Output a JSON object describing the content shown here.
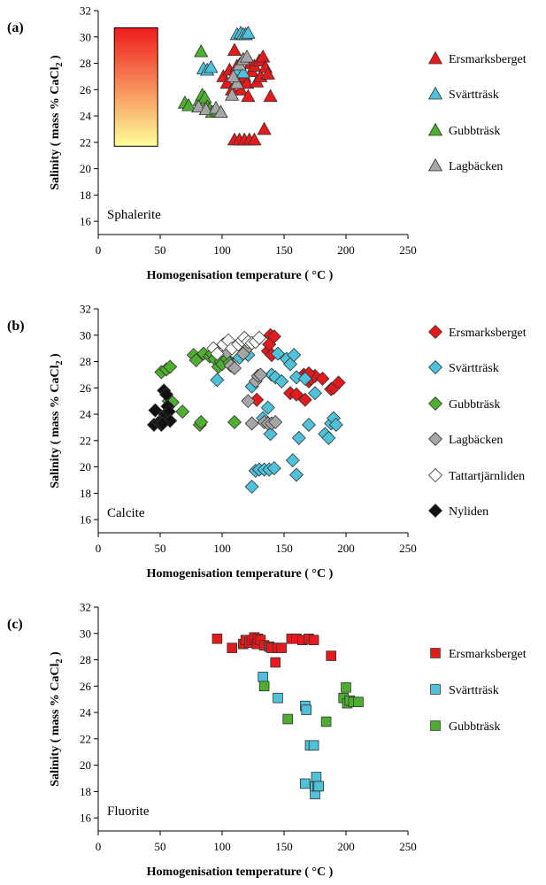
{
  "chart_data": [
    {
      "type": "scatter",
      "panel_label": "(a)",
      "mineral": "Sphalerite",
      "xlabel": "Homogenisation temperature ( °C )",
      "ylabel_main": "Salinity ( mass % CaCl",
      "ylabel_sub": "2",
      "ylabel_end": " )",
      "xlim": [
        0,
        250
      ],
      "ylim": [
        15,
        32
      ],
      "xticks": [
        "0",
        "50",
        "100",
        "150",
        "200",
        "250"
      ],
      "yticks": [
        "16",
        "18",
        "20",
        "22",
        "24",
        "26",
        "28",
        "30",
        "32"
      ],
      "marker": "triangle",
      "gradient_box": {
        "x": [
          13,
          48
        ],
        "y": [
          21.7,
          30.7
        ],
        "color_top": "#ee1c1c",
        "color_bottom": "#ffff99"
      },
      "series": [
        {
          "name": "Ersmarksberget",
          "color": "#e41a1c",
          "points": [
            [
              101,
              27
            ],
            [
              104,
              26.5
            ],
            [
              106,
              27.5
            ],
            [
              108,
              26
            ],
            [
              110,
              29
            ],
            [
              112,
              27.8
            ],
            [
              113,
              26.7
            ],
            [
              115,
              26
            ],
            [
              117,
              28.3
            ],
            [
              118,
              27
            ],
            [
              120,
              26.5
            ],
            [
              121,
              25.5
            ],
            [
              123,
              28
            ],
            [
              124,
              27.4
            ],
            [
              126,
              27.8
            ],
            [
              128,
              26.6
            ],
            [
              130,
              28.2
            ],
            [
              131,
              27
            ],
            [
              133,
              28.5
            ],
            [
              135,
              27.7
            ],
            [
              137,
              27.2
            ],
            [
              139,
              25.5
            ],
            [
              110,
              22.2
            ],
            [
              114,
              22.2
            ],
            [
              118,
              22.2
            ],
            [
              122,
              22.2
            ],
            [
              126,
              22.2
            ],
            [
              134,
              23
            ]
          ]
        },
        {
          "name": "Svärtträsk",
          "color": "#4fc1d9",
          "points": [
            [
              85,
              27.6
            ],
            [
              88,
              27.5
            ],
            [
              91,
              27.7
            ],
            [
              112,
              30.2
            ],
            [
              115,
              30.3
            ],
            [
              117,
              30.2
            ],
            [
              119,
              30.2
            ],
            [
              121,
              30.3
            ],
            [
              113,
              27.5
            ],
            [
              117,
              27.3
            ]
          ]
        },
        {
          "name": "Gubbträsk",
          "color": "#4fae32",
          "points": [
            [
              70,
              25
            ],
            [
              73,
              24.8
            ],
            [
              82,
              25.2
            ],
            [
              84,
              25.6
            ],
            [
              86,
              25.4
            ],
            [
              88,
              24.7
            ],
            [
              90,
              24.5
            ],
            [
              92,
              24.3
            ],
            [
              96,
              24.4
            ],
            [
              83,
              28.9
            ]
          ]
        },
        {
          "name": "Lagbäcken",
          "color": "#a6a6a6",
          "points": [
            [
              81,
              24.7
            ],
            [
              87,
              24.5
            ],
            [
              95,
              24.6
            ],
            [
              99,
              24.3
            ],
            [
              108,
              25.6
            ],
            [
              112,
              26.5
            ],
            [
              114,
              27.9
            ],
            [
              117,
              28.3
            ],
            [
              120,
              28.5
            ],
            [
              109,
              27
            ]
          ]
        }
      ]
    },
    {
      "type": "scatter",
      "panel_label": "(b)",
      "mineral": "Calcite",
      "xlabel": "Homogenisation temperature ( °C )",
      "ylabel_main": "Salinity ( mass % CaCl",
      "ylabel_sub": "2",
      "ylabel_end": " )",
      "xlim": [
        0,
        250
      ],
      "ylim": [
        15,
        32
      ],
      "xticks": [
        "0",
        "50",
        "100",
        "150",
        "200",
        "250"
      ],
      "yticks": [
        "16",
        "18",
        "20",
        "22",
        "24",
        "26",
        "28",
        "30",
        "32"
      ],
      "marker": "diamond",
      "series": [
        {
          "name": "Ersmarksberget",
          "color": "#e41a1c",
          "points": [
            [
              128,
              25.1
            ],
            [
              137,
              28.8
            ],
            [
              139,
              30
            ],
            [
              140,
              28.5
            ],
            [
              142,
              29.9
            ],
            [
              138,
              29.3
            ],
            [
              155,
              25.6
            ],
            [
              160,
              25.5
            ],
            [
              166,
              27
            ],
            [
              167,
              25.1
            ],
            [
              170,
              26.5
            ],
            [
              172,
              26.7
            ],
            [
              175,
              26.9
            ],
            [
              181,
              26.7
            ],
            [
              188,
              25.9
            ],
            [
              190,
              26
            ],
            [
              194,
              26.4
            ],
            [
              170,
              27.1
            ]
          ]
        },
        {
          "name": "Svärtträsk",
          "color": "#4fc1d9",
          "points": [
            [
              96,
              26.6
            ],
            [
              114,
              28.3
            ],
            [
              121,
              28.5
            ],
            [
              124,
              26.1
            ],
            [
              130,
              26.9
            ],
            [
              133,
              23.7
            ],
            [
              137,
              24.5
            ],
            [
              139,
              22.5
            ],
            [
              140,
              27
            ],
            [
              143,
              26.8
            ],
            [
              145,
              28.6
            ],
            [
              148,
              26.5
            ],
            [
              152,
              28.2
            ],
            [
              155,
              27.8
            ],
            [
              158,
              28.5
            ],
            [
              160,
              26.8
            ],
            [
              124,
              18.5
            ],
            [
              127,
              19.7
            ],
            [
              130,
              19.8
            ],
            [
              134,
              19.8
            ],
            [
              138,
              19.8
            ],
            [
              142,
              19.9
            ],
            [
              157,
              20.5
            ],
            [
              160,
              19.4
            ],
            [
              162,
              22.2
            ],
            [
              167,
              26.7
            ],
            [
              170,
              23.2
            ],
            [
              175,
              25.6
            ],
            [
              183,
              22.5
            ],
            [
              186,
              22.2
            ],
            [
              188,
              23.3
            ],
            [
              190,
              23.7
            ],
            [
              192,
              23.2
            ]
          ]
        },
        {
          "name": "Gubbträsk",
          "color": "#4fae32",
          "points": [
            [
              51,
              27.2
            ],
            [
              55,
              27.4
            ],
            [
              58,
              27.6
            ],
            [
              57,
              25
            ],
            [
              60,
              24.9
            ],
            [
              68,
              24.2
            ],
            [
              77,
              28.5
            ],
            [
              79,
              28.1
            ],
            [
              82,
              23.2
            ],
            [
              83,
              23.4
            ],
            [
              85,
              28.6
            ],
            [
              90,
              28.4
            ],
            [
              92,
              28.6
            ],
            [
              94,
              28.2
            ],
            [
              97,
              27.6
            ],
            [
              99,
              28
            ],
            [
              100,
              27.8
            ],
            [
              104,
              28.2
            ],
            [
              106,
              27.9
            ],
            [
              110,
              23.4
            ]
          ]
        },
        {
          "name": "Lagbäcken",
          "color": "#a6a6a6",
          "points": [
            [
              104,
              28.7
            ],
            [
              107,
              27.7
            ],
            [
              110,
              27.5
            ],
            [
              119,
              28.9
            ],
            [
              121,
              25
            ],
            [
              124,
              23.3
            ],
            [
              127,
              26.5
            ],
            [
              129,
              26.9
            ],
            [
              131,
              27
            ],
            [
              134,
              23.4
            ],
            [
              137,
              23.3
            ],
            [
              140,
              23.3
            ],
            [
              143,
              23.4
            ],
            [
              117,
              28.6
            ]
          ]
        },
        {
          "name": "Tattartjärnliden",
          "color": "#ffffff",
          "points": [
            [
              93,
              29
            ],
            [
              96,
              28.6
            ],
            [
              101,
              29.3
            ],
            [
              105,
              29.6
            ],
            [
              108,
              29
            ],
            [
              113,
              29.3
            ],
            [
              116,
              29.6
            ],
            [
              118,
              29.8
            ],
            [
              121,
              29.5
            ],
            [
              124,
              29.4
            ],
            [
              127,
              29.5
            ],
            [
              130,
              29.8
            ]
          ]
        },
        {
          "name": "Nyliden",
          "color": "#111111",
          "points": [
            [
              45,
              23.2
            ],
            [
              46,
              24.3
            ],
            [
              49,
              23.4
            ],
            [
              51,
              23.2
            ],
            [
              52,
              23.5
            ],
            [
              53,
              25.8
            ],
            [
              54,
              24
            ],
            [
              55,
              25.5
            ],
            [
              56,
              24.6
            ],
            [
              57,
              24.2
            ],
            [
              58,
              23.5
            ],
            [
              52,
              23.3
            ]
          ]
        }
      ]
    },
    {
      "type": "scatter",
      "panel_label": "(c)",
      "mineral": "Fluorite",
      "xlabel": "Homogenisation temperature ( °C )",
      "ylabel_main": "Salinity ( mass % CaCl",
      "ylabel_sub": "2",
      "ylabel_end": " )",
      "xlim": [
        0,
        250
      ],
      "ylim": [
        15,
        32
      ],
      "xticks": [
        "0",
        "50",
        "100",
        "150",
        "200",
        "250"
      ],
      "yticks": [
        "16",
        "18",
        "20",
        "22",
        "24",
        "26",
        "28",
        "30",
        "32"
      ],
      "marker": "square",
      "series": [
        {
          "name": "Ersmarksberget",
          "color": "#e41a1c",
          "points": [
            [
              96,
              29.6
            ],
            [
              108,
              28.9
            ],
            [
              117,
              29.2
            ],
            [
              119,
              29.5
            ],
            [
              122,
              29.3
            ],
            [
              124,
              29.5
            ],
            [
              126,
              29.7
            ],
            [
              128,
              29.2
            ],
            [
              129,
              29.6
            ],
            [
              131,
              29.5
            ],
            [
              134,
              29.1
            ],
            [
              138,
              29
            ],
            [
              140,
              28.9
            ],
            [
              143,
              27.8
            ],
            [
              145,
              28.9
            ],
            [
              148,
              28.9
            ],
            [
              156,
              29.6
            ],
            [
              160,
              29.6
            ],
            [
              165,
              29.5
            ],
            [
              170,
              29.6
            ],
            [
              174,
              29.5
            ],
            [
              188,
              28.3
            ]
          ]
        },
        {
          "name": "Svärtträsk",
          "color": "#4fc1d9",
          "points": [
            [
              133,
              26.7
            ],
            [
              145,
              25.1
            ],
            [
              167,
              24.5
            ],
            [
              168,
              24.2
            ],
            [
              167,
              18.6
            ],
            [
              171,
              21.5
            ],
            [
              174,
              21.5
            ],
            [
              175,
              17.8
            ],
            [
              175,
              18.4
            ],
            [
              176,
              19.1
            ],
            [
              177,
              18.4
            ],
            [
              178,
              18.4
            ]
          ]
        },
        {
          "name": "Gubbträsk",
          "color": "#4fae32",
          "points": [
            [
              134,
              26
            ],
            [
              153,
              23.5
            ],
            [
              184,
              23.3
            ],
            [
              198,
              25.1
            ],
            [
              200,
              25.9
            ],
            [
              201,
              24.7
            ],
            [
              203,
              24.9
            ],
            [
              206,
              24.8
            ],
            [
              210,
              24.8
            ]
          ]
        }
      ]
    }
  ]
}
